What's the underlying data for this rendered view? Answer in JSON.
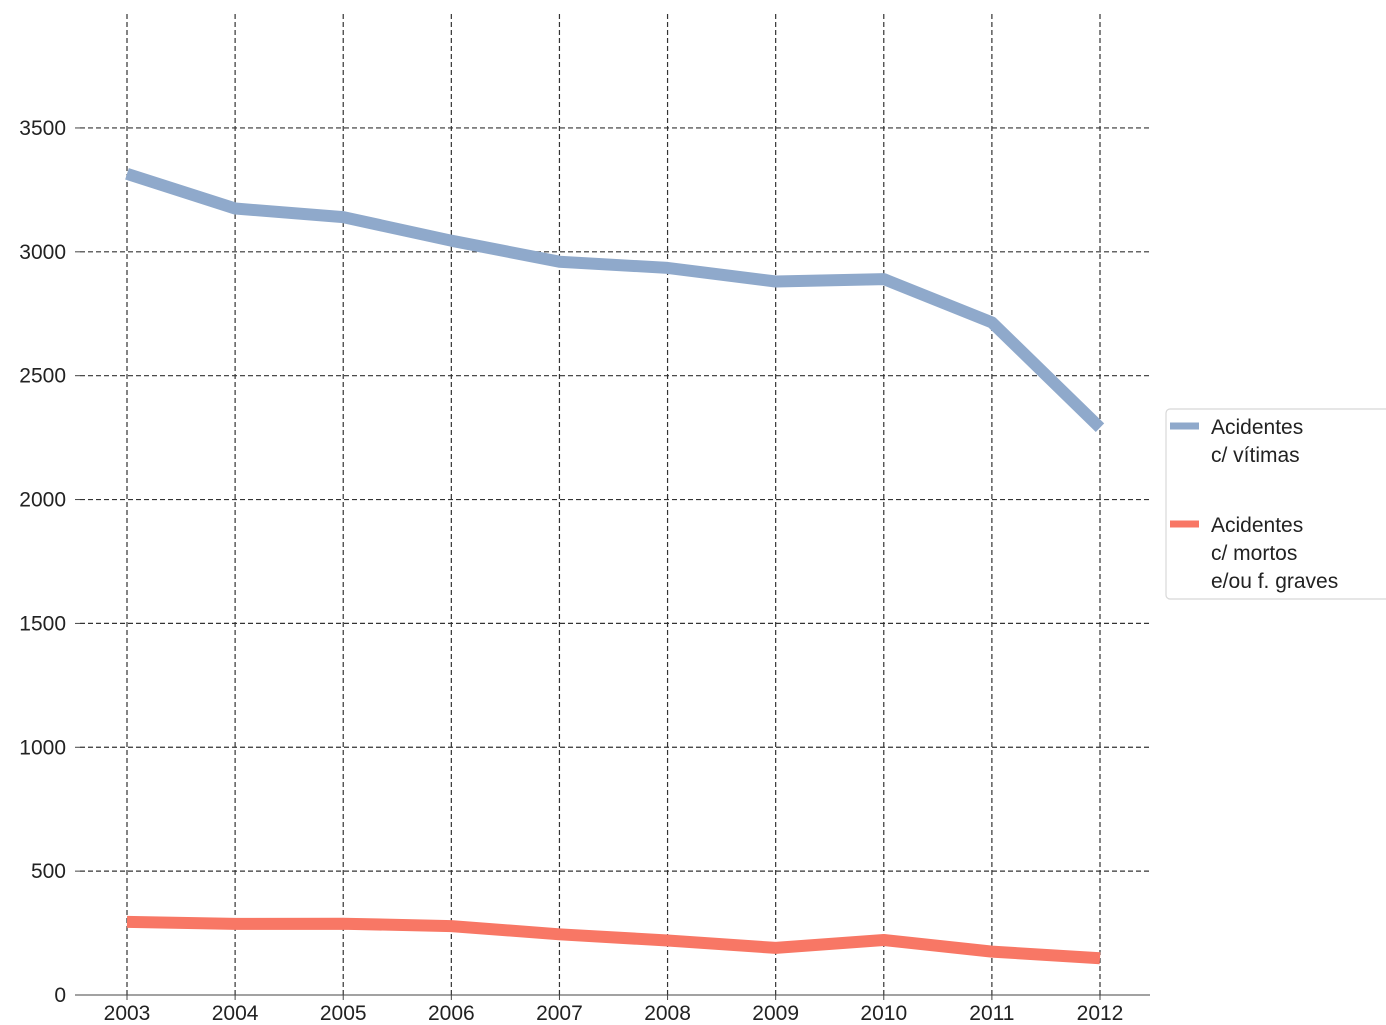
{
  "chart_data": {
    "type": "line",
    "title": "",
    "xlabel": "",
    "ylabel": "",
    "x": [
      2003,
      2004,
      2005,
      2006,
      2007,
      2008,
      2009,
      2010,
      2011,
      2012
    ],
    "x_ticks": [
      "2003",
      "2004",
      "2005",
      "2006",
      "2007",
      "2008",
      "2009",
      "2010",
      "2011",
      "2012"
    ],
    "y_ticks": [
      "0",
      "500",
      "1000",
      "1500",
      "2000",
      "2500",
      "3000",
      "3500"
    ],
    "ylim": [
      0,
      3960
    ],
    "grid": true,
    "legend_position": "right",
    "series": [
      {
        "name": "Acidentes c/ vítimas",
        "legend_lines": [
          "Acidentes",
          "c/ vítimas"
        ],
        "color": "#8fa9cb",
        "values": [
          3315,
          3175,
          3140,
          3045,
          2960,
          2935,
          2880,
          2890,
          2715,
          2290
        ]
      },
      {
        "name": "Acidentes c/ mortos e/ou f. graves",
        "legend_lines": [
          "Acidentes",
          "c/ mortos",
          "e/ou f. graves"
        ],
        "color": "#f87765",
        "values": [
          295,
          287,
          288,
          278,
          245,
          220,
          190,
          222,
          175,
          148
        ]
      }
    ]
  }
}
